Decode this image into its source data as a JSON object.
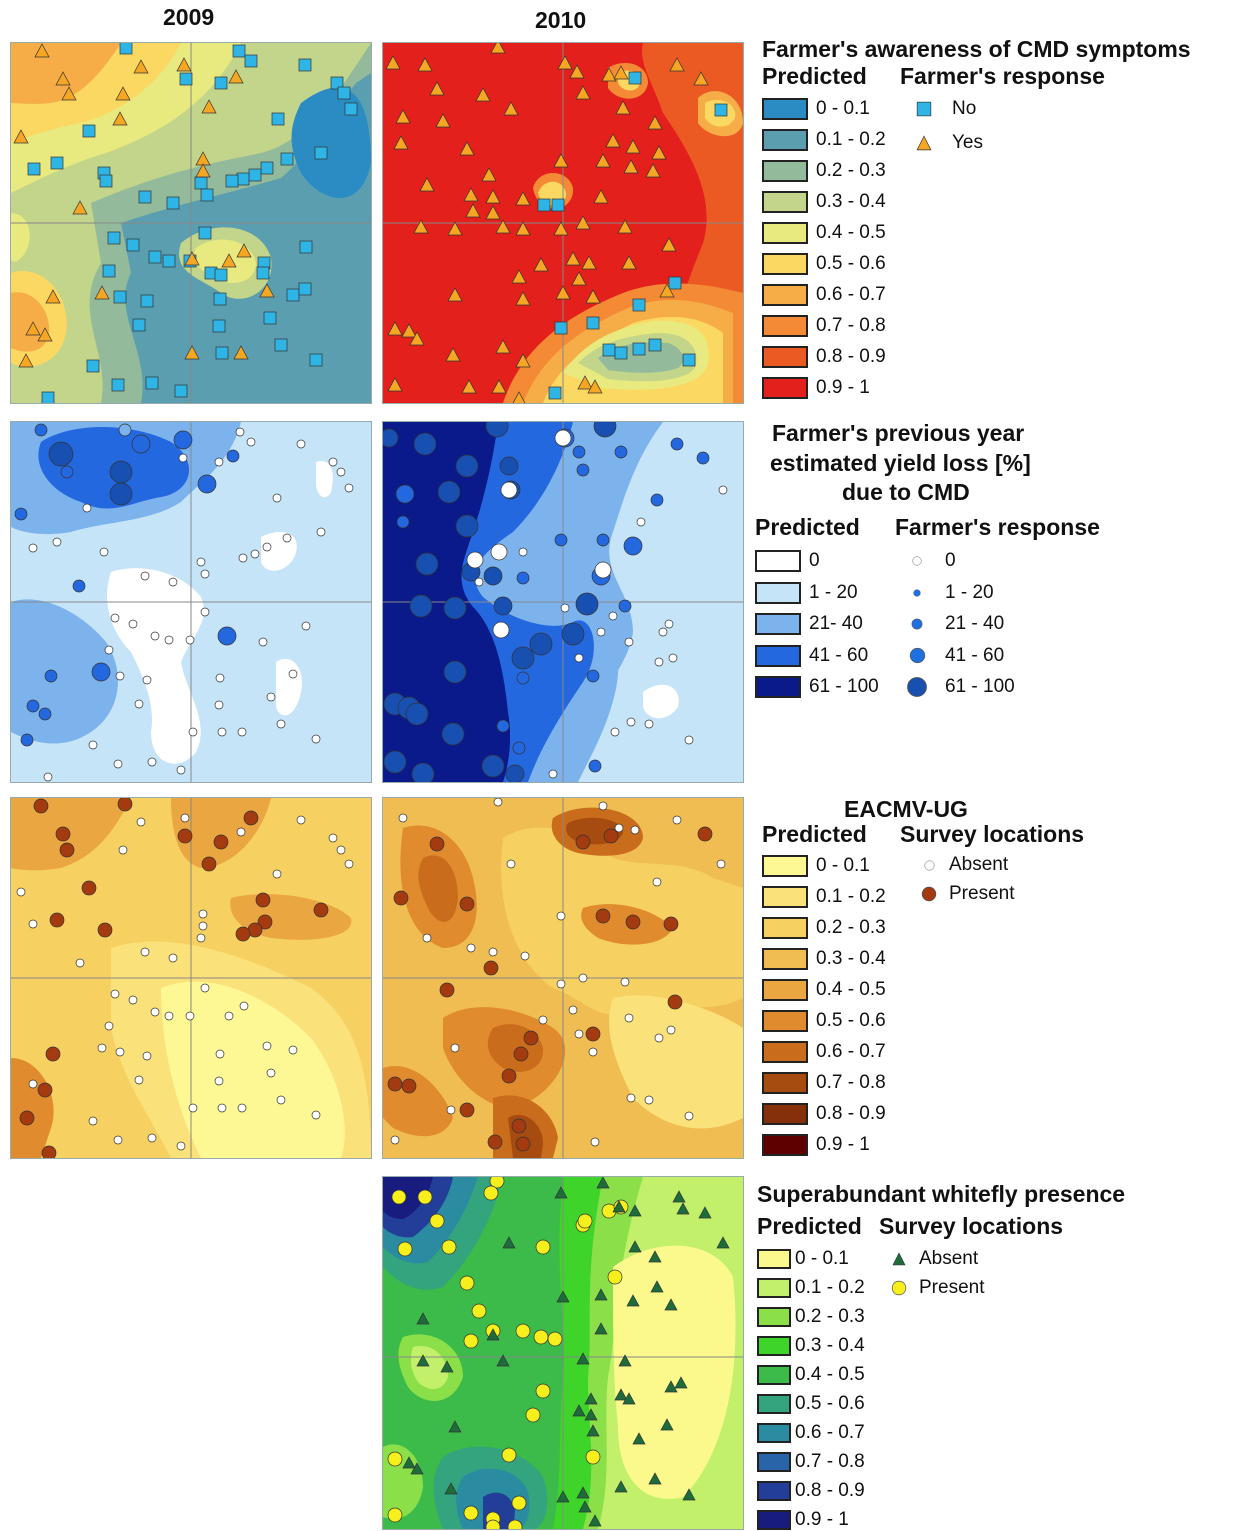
{
  "years": [
    "2009",
    "2010"
  ],
  "panels": {
    "awareness": {
      "title": "Farmer's awareness of CMD symptoms",
      "predicted_label": "Predicted",
      "response_label": "Farmer's response",
      "classes": [
        {
          "label": "0 - 0.1",
          "color": "#2b8cc4"
        },
        {
          "label": "0.1 - 0.2",
          "color": "#5b9eb0"
        },
        {
          "label": "0.2 - 0.3",
          "color": "#93bb9b"
        },
        {
          "label": "0.3 - 0.4",
          "color": "#c2d58a"
        },
        {
          "label": "0.4 - 0.5",
          "color": "#e8ea80"
        },
        {
          "label": "0.5 - 0.6",
          "color": "#fbd862"
        },
        {
          "label": "0.6 - 0.7",
          "color": "#f6ac47"
        },
        {
          "label": "0.7 - 0.8",
          "color": "#f48a35"
        },
        {
          "label": "0.8 - 0.9",
          "color": "#ec5a24"
        },
        {
          "label": "0.9 - 1",
          "color": "#e3201c"
        }
      ],
      "responses": [
        {
          "label": "No",
          "icon": "square-icon",
          "color": "#2fb4e6"
        },
        {
          "label": "Yes",
          "icon": "triangle-icon",
          "color": "#f5a623"
        }
      ]
    },
    "yield_loss": {
      "title_lines": [
        "Farmer's previous year",
        "estimated yield loss [%]",
        "due to CMD"
      ],
      "predicted_label": "Predicted",
      "response_label": "Farmer's response",
      "classes": [
        {
          "label": "0",
          "color": "#ffffff"
        },
        {
          "label": "1 - 20",
          "color": "#c6e4f7"
        },
        {
          "label": "21- 40",
          "color": "#7db3ec"
        },
        {
          "label": "41 - 60",
          "color": "#2468df"
        },
        {
          "label": "61 - 100",
          "color": "#0a1a8a"
        }
      ],
      "responses": [
        {
          "label": "0",
          "icon": "circle-icon",
          "color": "#ffffff"
        },
        {
          "label": "1 - 20",
          "icon": "circle-icon",
          "color": "#1e6fe0"
        },
        {
          "label": "21 - 40",
          "icon": "circle-icon",
          "color": "#1e6fe0"
        },
        {
          "label": "41 - 60",
          "icon": "circle-icon",
          "color": "#1e6fe0"
        },
        {
          "label": "61 - 100",
          "icon": "circle-icon",
          "color": "#1750b0"
        }
      ]
    },
    "eacmv": {
      "title": "EACMV-UG",
      "predicted_label": "Predicted",
      "response_label": "Survey locations",
      "classes": [
        {
          "label": "0 - 0.1",
          "color": "#fdf894"
        },
        {
          "label": "0.1 - 0.2",
          "color": "#fbe17a"
        },
        {
          "label": "0.2 - 0.3",
          "color": "#f6d161"
        },
        {
          "label": "0.3 - 0.4",
          "color": "#f0bd53"
        },
        {
          "label": "0.4 - 0.5",
          "color": "#eaa640"
        },
        {
          "label": "0.5 - 0.6",
          "color": "#e08c2e"
        },
        {
          "label": "0.6 - 0.7",
          "color": "#c96c1c"
        },
        {
          "label": "0.7 - 0.8",
          "color": "#a64c10"
        },
        {
          "label": "0.8 - 0.9",
          "color": "#86300b"
        },
        {
          "label": "0.9 - 1",
          "color": "#5e0000"
        }
      ],
      "responses": [
        {
          "label": "Absent",
          "icon": "circle-icon",
          "color": "#ffffff"
        },
        {
          "label": "Present",
          "icon": "circle-icon",
          "color": "#a33a10"
        }
      ]
    },
    "whitefly": {
      "title": "Superabundant whitefly presence",
      "predicted_label": "Predicted",
      "response_label": "Survey locations",
      "classes": [
        {
          "label": "0 - 0.1",
          "color": "#fbf98c"
        },
        {
          "label": "0.1 - 0.2",
          "color": "#c3f06b"
        },
        {
          "label": "0.2 - 0.3",
          "color": "#8be04a"
        },
        {
          "label": "0.3 - 0.4",
          "color": "#3fd42a"
        },
        {
          "label": "0.4 - 0.5",
          "color": "#3dbb4a"
        },
        {
          "label": "0.5 - 0.6",
          "color": "#33a47e"
        },
        {
          "label": "0.6 - 0.7",
          "color": "#2a8ba1"
        },
        {
          "label": "0.7 - 0.8",
          "color": "#2a64a8"
        },
        {
          "label": "0.8 - 0.9",
          "color": "#233e98"
        },
        {
          "label": "0.9 - 1",
          "color": "#171c7e"
        }
      ],
      "responses": [
        {
          "label": "Absent",
          "icon": "triangle-icon",
          "color": "#1e6b3c"
        },
        {
          "label": "Present",
          "icon": "circle-icon",
          "color": "#f7ef1c"
        }
      ]
    }
  }
}
